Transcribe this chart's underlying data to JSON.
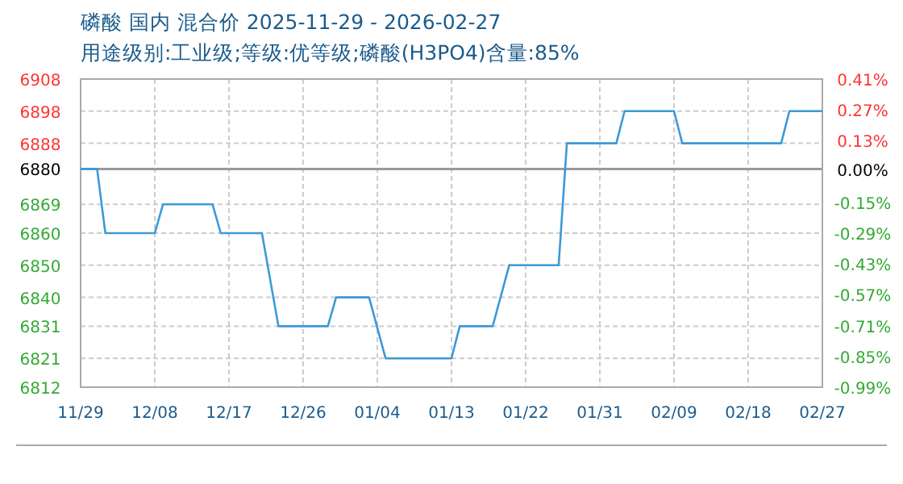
{
  "chart_data": {
    "type": "line",
    "title": "磷酸 国内 混合价 2025-11-29 - 2026-02-27",
    "subtitle": "用途级别:工业级;等级:优等级;磷酸(H3PO4)含量:85%",
    "x": [
      "2025-11-29",
      "2025-12-01",
      "2025-12-02",
      "2025-12-08",
      "2025-12-09",
      "2025-12-15",
      "2025-12-16",
      "2025-12-21",
      "2025-12-23",
      "2025-12-29",
      "2025-12-30",
      "2026-01-03",
      "2026-01-05",
      "2026-01-13",
      "2026-01-14",
      "2026-01-18",
      "2026-01-20",
      "2026-01-26",
      "2026-01-27",
      "2026-02-02",
      "2026-02-03",
      "2026-02-09",
      "2026-02-10",
      "2026-02-22",
      "2026-02-23",
      "2026-02-27"
    ],
    "series": [
      {
        "color": "#3c9ad8",
        "values": [
          6880,
          6880,
          6860,
          6860,
          6869,
          6869,
          6860,
          6860,
          6831,
          6831,
          6840,
          6840,
          6821,
          6821,
          6831,
          6831,
          6850,
          6850,
          6888,
          6888,
          6898,
          6898,
          6888,
          6888,
          6898,
          6898
        ]
      }
    ],
    "xlim": [
      "2025-11-29",
      "2026-02-27"
    ],
    "xticks": [
      {
        "value": "2025-11-29",
        "label": "11/29"
      },
      {
        "value": "2025-12-08",
        "label": "12/08"
      },
      {
        "value": "2025-12-17",
        "label": "12/17"
      },
      {
        "value": "2025-12-26",
        "label": "12/26"
      },
      {
        "value": "2026-01-04",
        "label": "01/04"
      },
      {
        "value": "2026-01-13",
        "label": "01/13"
      },
      {
        "value": "2026-01-22",
        "label": "01/22"
      },
      {
        "value": "2026-01-31",
        "label": "01/31"
      },
      {
        "value": "2026-02-09",
        "label": "02/09"
      },
      {
        "value": "2026-02-18",
        "label": "02/18"
      },
      {
        "value": "2026-02-27",
        "label": "02/27"
      }
    ],
    "ylim": [
      6812,
      6908
    ],
    "yticks": [
      6812,
      6821,
      6831,
      6840,
      6850,
      6860,
      6869,
      6880,
      6888,
      6898,
      6908
    ],
    "y2lim": [
      -0.99,
      0.41
    ],
    "y2ticks": [
      {
        "value": -0.99,
        "label": "-0.99%"
      },
      {
        "value": -0.85,
        "label": "-0.85%"
      },
      {
        "value": -0.71,
        "label": "-0.71%"
      },
      {
        "value": -0.57,
        "label": "-0.57%"
      },
      {
        "value": -0.43,
        "label": "-0.43%"
      },
      {
        "value": -0.29,
        "label": "-0.29%"
      },
      {
        "value": -0.15,
        "label": "-0.15%"
      },
      {
        "value": 0,
        "label": "0.00%"
      },
      {
        "value": 0.13,
        "label": "0.13%"
      },
      {
        "value": 0.27,
        "label": "0.27%"
      },
      {
        "value": 0.41,
        "label": "0.41%"
      }
    ],
    "ref_lines": [
      {
        "axis": "y",
        "value": 6880,
        "color": "#999999",
        "line_style": "solid"
      }
    ],
    "grid": true
  }
}
